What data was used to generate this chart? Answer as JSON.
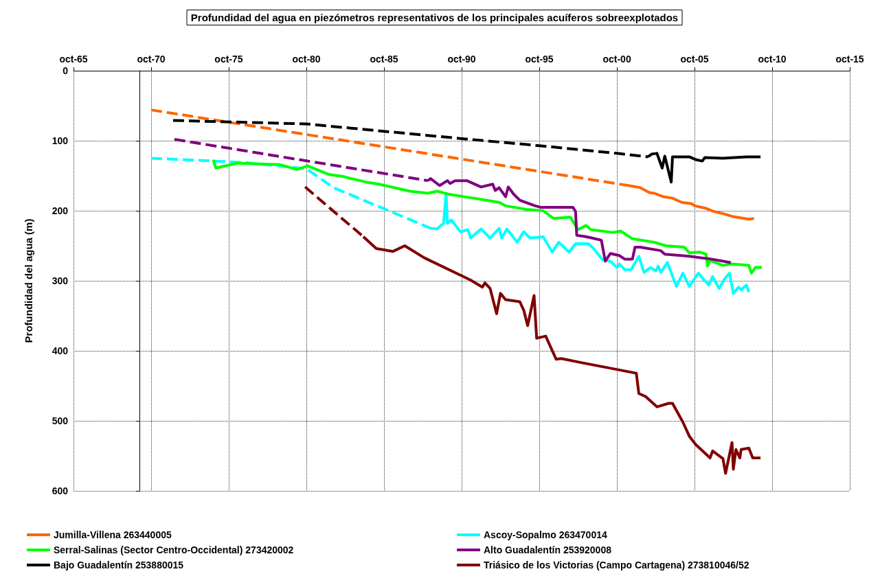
{
  "chart_data": {
    "type": "line",
    "title": "Profundidad del agua en piezómetros representativos de los principales acuíferos sobreexplotados",
    "ylabel": "Profundidad del agua (m)",
    "xlim": [
      "1965-10",
      "2015-10"
    ],
    "xticks": [
      {
        "value": "1965-10",
        "label": "oct-65"
      },
      {
        "value": "1970-10",
        "label": "oct-70"
      },
      {
        "value": "1975-10",
        "label": "oct-75"
      },
      {
        "value": "1980-10",
        "label": "oct-80"
      },
      {
        "value": "1985-10",
        "label": "oct-85"
      },
      {
        "value": "1990-10",
        "label": "oct-90"
      },
      {
        "value": "1995-10",
        "label": "oct-95"
      },
      {
        "value": "2000-10",
        "label": "oct-00"
      },
      {
        "value": "2005-10",
        "label": "oct-05"
      },
      {
        "value": "2010-10",
        "label": "oct-10"
      },
      {
        "value": "2015-10",
        "label": "oct-15"
      }
    ],
    "ylim": [
      600,
      0
    ],
    "yticks": [
      0,
      100,
      200,
      300,
      400,
      500,
      600
    ],
    "grid": true,
    "legend": "bottom",
    "marker": "none",
    "series": [
      {
        "name": "Jumilla-Villena 263440005",
        "color": "#ff6600",
        "line_style": "solid",
        "x": [
          "2001-07",
          "2002-04",
          "2002-11",
          "2003-03",
          "2003-10",
          "2004-05",
          "2004-12",
          "2005-08",
          "2005-10",
          "2006-06",
          "2007-01",
          "2007-08",
          "2008-03",
          "2009-04",
          "2009-08"
        ],
        "values": [
          164,
          167,
          174,
          175,
          180,
          182,
          188,
          190,
          193,
          196,
          201,
          204,
          208,
          212,
          211
        ]
      },
      {
        "name": "Ascoy-Sopalmo 263470014",
        "color": "#00ffff",
        "line_style": "solid",
        "x": [
          "1988-10",
          "1989-03",
          "1989-08",
          "1989-10",
          "1989-11",
          "1990-02",
          "1990-09",
          "1991-03",
          "1991-05",
          "1992-01",
          "1992-08",
          "1993-03",
          "1993-05",
          "1993-09",
          "1994-05",
          "1994-10",
          "1995-03",
          "1996-01",
          "1996-08",
          "1997-01",
          "1997-09",
          "1998-02",
          "1998-12",
          "1999-04",
          "1999-11",
          "2000-05",
          "2000-10",
          "2000-12",
          "2001-04",
          "2001-09",
          "2002-03",
          "2002-07",
          "2002-12",
          "2003-04",
          "2003-06",
          "2003-08",
          "2004-01",
          "2004-08",
          "2005-01",
          "2005-06",
          "2006-01",
          "2006-05",
          "2006-09",
          "2006-12",
          "2007-05",
          "2007-09",
          "2008-01",
          "2008-04",
          "2008-08",
          "2008-10",
          "2009-02",
          "2009-04"
        ],
        "values": [
          225,
          226,
          218,
          175,
          218,
          213,
          230,
          227,
          239,
          226,
          239,
          225,
          239,
          226,
          245,
          230,
          239,
          237,
          259,
          245,
          259,
          247,
          247,
          254,
          270,
          272,
          281,
          276,
          284,
          284,
          265,
          288,
          281,
          286,
          279,
          288,
          274,
          308,
          289,
          308,
          289,
          298,
          306,
          294,
          311,
          298,
          289,
          318,
          309,
          313,
          306,
          316
        ]
      },
      {
        "name": "Serral-Salinas (Sector Centro-Occidental) 273420002",
        "color": "#00ff00",
        "line_style": "solid",
        "x": [
          "1974-10",
          "1974-12",
          "1976-05",
          "1979-01",
          "1980-03",
          "1980-11",
          "1982-03",
          "1983-02",
          "1984-08",
          "1985-06",
          "1987-06",
          "1988-08",
          "1989-03",
          "1989-11",
          "1990-12",
          "1991-11",
          "1993-03",
          "1993-08",
          "1994-12",
          "1996-01",
          "1996-09",
          "1997-10",
          "1998-04",
          "1998-10",
          "1999-02",
          "2000-07",
          "2001-01",
          "2001-10",
          "2003-03",
          "2003-12",
          "2005-02",
          "2005-06",
          "2006-02",
          "2006-07",
          "2006-08",
          "2006-10",
          "2007-08",
          "2008-03",
          "2009-04",
          "2009-06",
          "2009-09",
          "2010-02"
        ],
        "values": [
          127,
          139,
          132,
          134,
          141,
          136,
          148,
          151,
          159,
          162,
          172,
          175,
          172,
          176,
          180,
          183,
          188,
          193,
          198,
          200,
          211,
          209,
          227,
          221,
          227,
          231,
          229,
          240,
          245,
          250,
          252,
          260,
          259,
          262,
          279,
          271,
          278,
          276,
          278,
          289,
          281,
          281
        ]
      },
      {
        "name": "Alto Guadalentín 253920008",
        "color": "#800080",
        "line_style": "solid",
        "x": [
          "1988-08",
          "1988-10",
          "1989-05",
          "1989-11",
          "1990-01",
          "1990-05",
          "1991-02",
          "1992-01",
          "1992-10",
          "1992-12",
          "1993-03",
          "1993-08",
          "1993-10",
          "1994-02",
          "1994-07",
          "1995-07",
          "1995-11",
          "1997-12",
          "1998-02",
          "1998-03",
          "1998-10",
          "1999-03",
          "1999-10",
          "2000-01",
          "2000-05",
          "2000-12",
          "2001-04",
          "2001-10",
          "2001-12",
          "2002-04",
          "2003-08",
          "2003-11",
          "2005-06",
          "2006-11",
          "2008-02"
        ],
        "values": [
          157,
          154,
          164,
          157,
          161,
          157,
          157,
          166,
          162,
          171,
          167,
          180,
          166,
          176,
          185,
          193,
          195,
          195,
          201,
          235,
          237,
          239,
          242,
          272,
          261,
          264,
          269,
          269,
          252,
          252,
          257,
          262,
          265,
          269,
          274
        ]
      },
      {
        "name": "Bajo Guadalentín 253880015",
        "color": "#000000",
        "line_style": "solid",
        "x": [
          "2002-10",
          "2003-01",
          "2003-05",
          "2003-09",
          "2003-11",
          "2004-04",
          "2004-05",
          "2005-06",
          "2005-11",
          "2006-04",
          "2006-06",
          "2007-08",
          "2009-02",
          "2010-01"
        ],
        "values": [
          123,
          119,
          118,
          139,
          122,
          159,
          123,
          123,
          127,
          129,
          124,
          125,
          123,
          123
        ]
      },
      {
        "name": "Triásico de los Victorias (Campo Cartagena) 273810046/52",
        "color": "#800000",
        "line_style": "solid",
        "x": [
          "1984-06",
          "1985-04",
          "1986-05",
          "1987-02",
          "1988-05",
          "1991-05",
          "1992-02",
          "1992-04",
          "1992-08",
          "1993-01",
          "1993-04",
          "1993-08",
          "1994-07",
          "1994-10",
          "1995-01",
          "1995-06",
          "1995-08",
          "1996-03",
          "1996-11",
          "1997-03",
          "1998-07",
          "2002-01",
          "2002-03",
          "2002-08",
          "2003-05",
          "2004-02",
          "2004-05",
          "2005-01",
          "2005-06",
          "2005-11",
          "2006-10",
          "2006-12",
          "2007-08",
          "2007-10",
          "2008-03",
          "2008-04",
          "2008-06",
          "2008-09",
          "2008-10",
          "2009-04",
          "2009-07",
          "2010-01"
        ],
        "values": [
          237,
          254,
          258,
          250,
          267,
          299,
          309,
          303,
          311,
          347,
          318,
          327,
          330,
          342,
          364,
          321,
          382,
          379,
          412,
          411,
          417,
          432,
          461,
          465,
          480,
          475,
          475,
          502,
          522,
          534,
          553,
          543,
          554,
          575,
          531,
          569,
          541,
          553,
          541,
          539,
          553,
          553
        ]
      },
      {
        "color": "#ff6600",
        "line_style": "dashed",
        "x": [
          "1970-10",
          "2001-07"
        ],
        "values": [
          56,
          164
        ]
      },
      {
        "color": "#00ffff",
        "line_style": "dashed",
        "x": [
          "1970-10",
          "1976-10",
          "1980-10",
          "1982-07",
          "1988-10"
        ],
        "values": [
          125,
          131,
          140,
          167,
          225
        ]
      },
      {
        "color": "#800080",
        "line_style": "dashed",
        "x": [
          "1972-04",
          "1988-08"
        ],
        "values": [
          98,
          157
        ]
      },
      {
        "color": "#000000",
        "line_style": "dashed",
        "x": [
          "1972-03",
          "1980-10",
          "1990-10",
          "1995-10",
          "2000-10",
          "2002-10"
        ],
        "values": [
          71,
          76,
          97,
          107,
          118,
          123
        ]
      },
      {
        "color": "#800000",
        "line_style": "dashed",
        "x": [
          "1980-09",
          "1984-06"
        ],
        "values": [
          166,
          237
        ]
      }
    ]
  }
}
